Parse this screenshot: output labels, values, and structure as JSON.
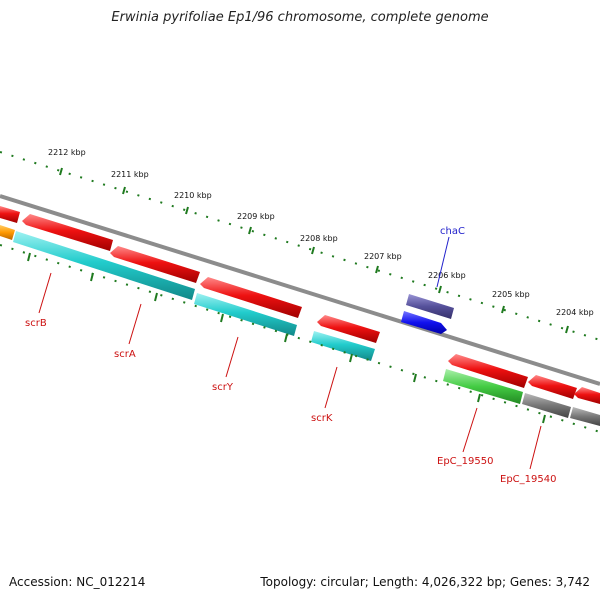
{
  "title": "Erwinia pyrifoliae Ep1/96 chromosome, complete genome",
  "footer": {
    "accession": "Accession: NC_012214",
    "summary": "Topology: circular; Length: 4,026,322 bp; Genes: 3,742"
  },
  "ticks": [
    "2212 kbp",
    "2211 kbp",
    "2210 kbp",
    "2209 kbp",
    "2208 kbp",
    "2207 kbp",
    "2206 kbp",
    "2205 kbp",
    "2204 kbp"
  ],
  "genes": [
    {
      "name": "chaC",
      "strand": "forward",
      "color_type": "cds_forward"
    },
    {
      "name": "scrB",
      "strand": "reverse",
      "color_type": "cds_reverse"
    },
    {
      "name": "scrA",
      "strand": "reverse",
      "color_type": "cds_reverse"
    },
    {
      "name": "scrY",
      "strand": "reverse",
      "color_type": "cds_reverse"
    },
    {
      "name": "scrK",
      "strand": "reverse",
      "color_type": "cds_reverse"
    },
    {
      "name": "EpC_19550",
      "strand": "reverse",
      "color_type": "cds_reverse"
    },
    {
      "name": "EpC_19540",
      "strand": "reverse",
      "color_type": "cds_reverse"
    }
  ],
  "colors": {
    "backbone": "#8c8c8c",
    "tick": "#1f7a1f",
    "cds_reverse": "#ee1111",
    "cds_forward_label": "#2222cc",
    "cds_reverse_label": "#cc1111",
    "cyan": "#22cccc",
    "orange": "#ff9900",
    "slate": "#55509a",
    "blue": "#1111ee",
    "green": "#44cc44",
    "gray": "#777777"
  }
}
